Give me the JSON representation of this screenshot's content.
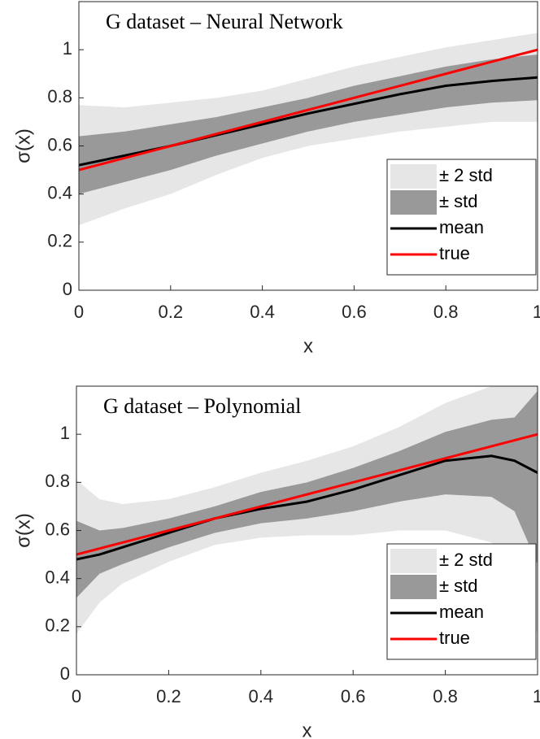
{
  "chart_data": [
    {
      "type": "band_line",
      "title": "G dataset – Neural Network",
      "xlabel": "x",
      "ylabel": "σ(x)",
      "x": [
        0,
        0.1,
        0.2,
        0.3,
        0.4,
        0.5,
        0.6,
        0.7,
        0.8,
        0.9,
        1
      ],
      "xlim": [
        0,
        1
      ],
      "ylim": [
        0,
        1.2
      ],
      "xticks": [
        0,
        0.2,
        0.4,
        0.6,
        0.8,
        1
      ],
      "yticks": [
        0,
        0.2,
        0.4,
        0.6,
        0.8,
        1
      ],
      "legend": "lower right",
      "series": [
        {
          "name": "± 2 std",
          "color": "#e6e6e6",
          "upper": [
            0.77,
            0.76,
            0.78,
            0.8,
            0.83,
            0.88,
            0.93,
            0.97,
            1.01,
            1.04,
            1.07
          ],
          "lower": [
            0.27,
            0.34,
            0.4,
            0.48,
            0.55,
            0.6,
            0.63,
            0.66,
            0.68,
            0.7,
            0.7
          ]
        },
        {
          "name": "± std",
          "color": "#999999",
          "upper": [
            0.64,
            0.66,
            0.69,
            0.72,
            0.76,
            0.8,
            0.85,
            0.89,
            0.93,
            0.96,
            0.98
          ],
          "lower": [
            0.4,
            0.45,
            0.5,
            0.56,
            0.61,
            0.66,
            0.7,
            0.73,
            0.76,
            0.78,
            0.79
          ]
        },
        {
          "name": "mean",
          "color": "#000000",
          "values": [
            0.52,
            0.56,
            0.6,
            0.645,
            0.69,
            0.735,
            0.775,
            0.815,
            0.85,
            0.87,
            0.885
          ]
        },
        {
          "name": "true",
          "color": "#ff0000",
          "values": [
            0.5,
            0.55,
            0.6,
            0.65,
            0.7,
            0.75,
            0.8,
            0.85,
            0.9,
            0.95,
            1
          ]
        }
      ]
    },
    {
      "type": "band_line",
      "title": "G dataset – Polynomial",
      "xlabel": "x",
      "ylabel": "σ(x)",
      "x": [
        0,
        0.05,
        0.1,
        0.2,
        0.3,
        0.4,
        0.5,
        0.6,
        0.7,
        0.8,
        0.9,
        0.95,
        1
      ],
      "xlim": [
        0,
        1
      ],
      "ylim": [
        0,
        1.2
      ],
      "xticks": [
        0,
        0.2,
        0.4,
        0.6,
        0.8,
        1
      ],
      "yticks": [
        0,
        0.2,
        0.4,
        0.6,
        0.8,
        1
      ],
      "legend": "lower right",
      "series": [
        {
          "name": "± 2 std",
          "color": "#e6e6e6",
          "upper": [
            0.81,
            0.73,
            0.71,
            0.73,
            0.78,
            0.84,
            0.89,
            0.95,
            1.03,
            1.13,
            1.2,
            1.2,
            1.2
          ],
          "lower": [
            0.17,
            0.3,
            0.38,
            0.47,
            0.54,
            0.57,
            0.58,
            0.58,
            0.6,
            0.6,
            0.55,
            0.45,
            0.17
          ]
        },
        {
          "name": "± std",
          "color": "#999999",
          "upper": [
            0.64,
            0.6,
            0.61,
            0.65,
            0.7,
            0.76,
            0.8,
            0.86,
            0.93,
            1.01,
            1.06,
            1.07,
            1.18
          ],
          "lower": [
            0.32,
            0.42,
            0.46,
            0.53,
            0.59,
            0.63,
            0.65,
            0.68,
            0.72,
            0.75,
            0.74,
            0.68,
            0.46
          ]
        },
        {
          "name": "mean",
          "color": "#000000",
          "values": [
            0.48,
            0.5,
            0.53,
            0.59,
            0.65,
            0.69,
            0.72,
            0.77,
            0.83,
            0.89,
            0.91,
            0.89,
            0.84
          ]
        },
        {
          "name": "true",
          "color": "#ff0000",
          "values": [
            0.5,
            0.525,
            0.55,
            0.6,
            0.65,
            0.7,
            0.75,
            0.8,
            0.85,
            0.9,
            0.95,
            0.975,
            1
          ]
        }
      ]
    }
  ]
}
